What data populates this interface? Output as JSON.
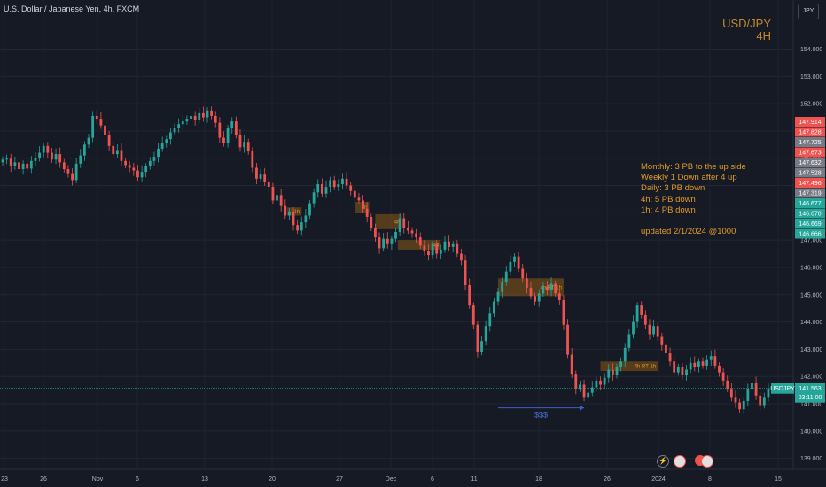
{
  "header": {
    "title": "U.S. Dollar / Japanese Yen, 4h, FXCM",
    "currency": "JPY"
  },
  "overlay": {
    "pair": "USD/JPY",
    "timeframe": "4H"
  },
  "notes": {
    "lines": [
      "Monthly: 3 PB to the up side",
      "Weekly 1 Down after 4 up",
      "Daily: 3 PB down",
      "4h: 5 PB down",
      "1h: 4 PB down"
    ],
    "updated": "updated 2/1/2024 @1000"
  },
  "colors": {
    "up": "#26a69a",
    "down": "#ef5350",
    "zone": "#8a5a16",
    "note": "#e09a2a",
    "arrow": "#3d62c8"
  },
  "chart_data": {
    "type": "candlestick",
    "symbol": "USDJPY",
    "ylim": [
      138.6,
      155.8
    ],
    "y_ticks": [
      139.0,
      140.0,
      141.0,
      142.0,
      143.0,
      144.0,
      145.0,
      146.0,
      147.0,
      148.0,
      149.0,
      150.0,
      151.0,
      152.0,
      153.0,
      154.0
    ],
    "x_ticks": [
      "23",
      "26",
      "Nov",
      "6",
      "13",
      "20",
      "27",
      "Dec",
      "6",
      "11",
      "18",
      "26",
      "2024",
      "8",
      "15"
    ],
    "current_price": 141.563,
    "countdown": "03:11:00",
    "price_badges": [
      {
        "value": "147.914",
        "color": "#ef5350"
      },
      {
        "value": "147.828",
        "color": "#ef5350"
      },
      {
        "value": "147.725",
        "color": "#787b86"
      },
      {
        "value": "147.673",
        "color": "#ef5350"
      },
      {
        "value": "147.632",
        "color": "#787b86"
      },
      {
        "value": "147.528",
        "color": "#787b86"
      },
      {
        "value": "147.496",
        "color": "#ef5350"
      },
      {
        "value": "147.319",
        "color": "#787b86"
      },
      {
        "value": "146.677",
        "color": "#26a69a"
      },
      {
        "value": "146.670",
        "color": "#26a69a"
      },
      {
        "value": "146.669",
        "color": "#26a69a"
      },
      {
        "value": "146.666",
        "color": "#26a69a"
      }
    ],
    "zones": [
      {
        "label": "4h",
        "x_start": 86.0,
        "x_end": 89.5,
        "low": 148.0,
        "high": 148.4
      },
      {
        "label": "4h",
        "x_start": 91.0,
        "x_end": 97.5,
        "low": 147.4,
        "high": 147.95
      },
      {
        "label": "4h",
        "x_start": 96.5,
        "x_end": 107.0,
        "low": 146.65,
        "high": 147.0
      },
      {
        "label": "4h RT 1h",
        "x_start": 121.0,
        "x_end": 137.0,
        "low": 144.95,
        "high": 145.6
      },
      {
        "label": "4h RT 1h",
        "x_start": 146.0,
        "x_end": 160.0,
        "low": 142.2,
        "high": 142.55
      },
      {
        "label": "1h",
        "x_start": 69.5,
        "x_end": 73.0,
        "low": 147.9,
        "high": 148.2
      }
    ],
    "arrow": {
      "label": "$$$",
      "x_start": 121.0,
      "x_end": 142.0,
      "y": 140.85
    },
    "closes": [
      149.95,
      149.98,
      149.7,
      149.85,
      149.6,
      149.8,
      149.62,
      149.9,
      150.0,
      150.2,
      150.45,
      150.2,
      149.95,
      150.15,
      149.85,
      149.6,
      149.45,
      149.2,
      149.8,
      150.1,
      150.5,
      150.75,
      151.55,
      151.45,
      151.2,
      150.85,
      150.45,
      150.15,
      150.3,
      149.9,
      149.75,
      149.65,
      149.55,
      149.3,
      149.5,
      149.7,
      149.9,
      150.05,
      150.35,
      150.55,
      150.7,
      150.95,
      151.1,
      151.25,
      151.35,
      151.45,
      151.55,
      151.4,
      151.65,
      151.5,
      151.75,
      151.55,
      151.3,
      150.75,
      150.55,
      151.1,
      151.35,
      150.85,
      150.4,
      150.6,
      150.25,
      149.65,
      149.25,
      149.4,
      149.15,
      148.95,
      148.45,
      148.65,
      148.25,
      147.9,
      148.05,
      147.55,
      147.35,
      147.65,
      147.9,
      148.35,
      148.75,
      149.05,
      148.7,
      148.95,
      149.2,
      148.95,
      149.05,
      149.25,
      149.0,
      148.8,
      148.55,
      148.45,
      148.15,
      147.85,
      147.45,
      147.1,
      146.7,
      147.05,
      146.85,
      147.05,
      147.3,
      147.8,
      147.45,
      147.35,
      147.25,
      147.1,
      146.8,
      146.6,
      146.45,
      146.85,
      146.5,
      146.65,
      146.95,
      146.75,
      146.85,
      146.5,
      146.25,
      145.35,
      144.6,
      143.9,
      142.9,
      143.3,
      143.85,
      144.3,
      144.75,
      145.1,
      145.45,
      145.85,
      146.2,
      146.4,
      145.95,
      145.6,
      145.25,
      144.95,
      144.75,
      145.05,
      145.3,
      145.15,
      145.4,
      145.05,
      144.8,
      143.9,
      142.8,
      142.1,
      141.55,
      141.7,
      141.25,
      141.4,
      141.6,
      141.85,
      141.7,
      141.95,
      142.25,
      142.05,
      142.35,
      142.55,
      143.05,
      143.55,
      144.0,
      144.6,
      144.25,
      143.9,
      143.55,
      143.85,
      143.45,
      143.15,
      142.85,
      142.55,
      142.15,
      142.35,
      142.05,
      142.25,
      142.5,
      142.35,
      142.55,
      142.4,
      142.6,
      142.75,
      142.4,
      142.15,
      141.85,
      141.55,
      141.25,
      141.05,
      140.8,
      141.1,
      141.55,
      141.75,
      141.3,
      140.95,
      141.25,
      141.563
    ]
  }
}
